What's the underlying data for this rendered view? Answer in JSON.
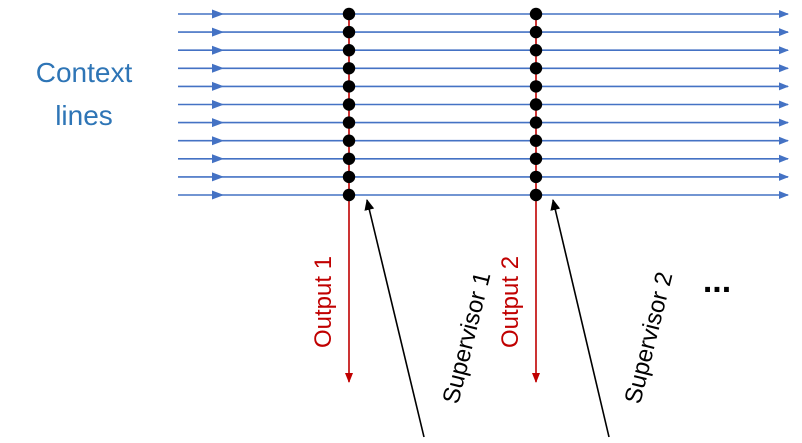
{
  "context_label": [
    "Context",
    "lines"
  ],
  "groups": [
    {
      "output_label": "Output 1",
      "supervisor_label": "Supervisor 1"
    },
    {
      "output_label": "Output 2",
      "supervisor_label": "Supervisor 2"
    }
  ],
  "ellipsis": "...",
  "context_line_count": 11,
  "colors": {
    "context": "#4472C4",
    "context_text": "#2E75B6",
    "output": "#C00000",
    "node": "#000000",
    "supervisor": "#000000"
  }
}
